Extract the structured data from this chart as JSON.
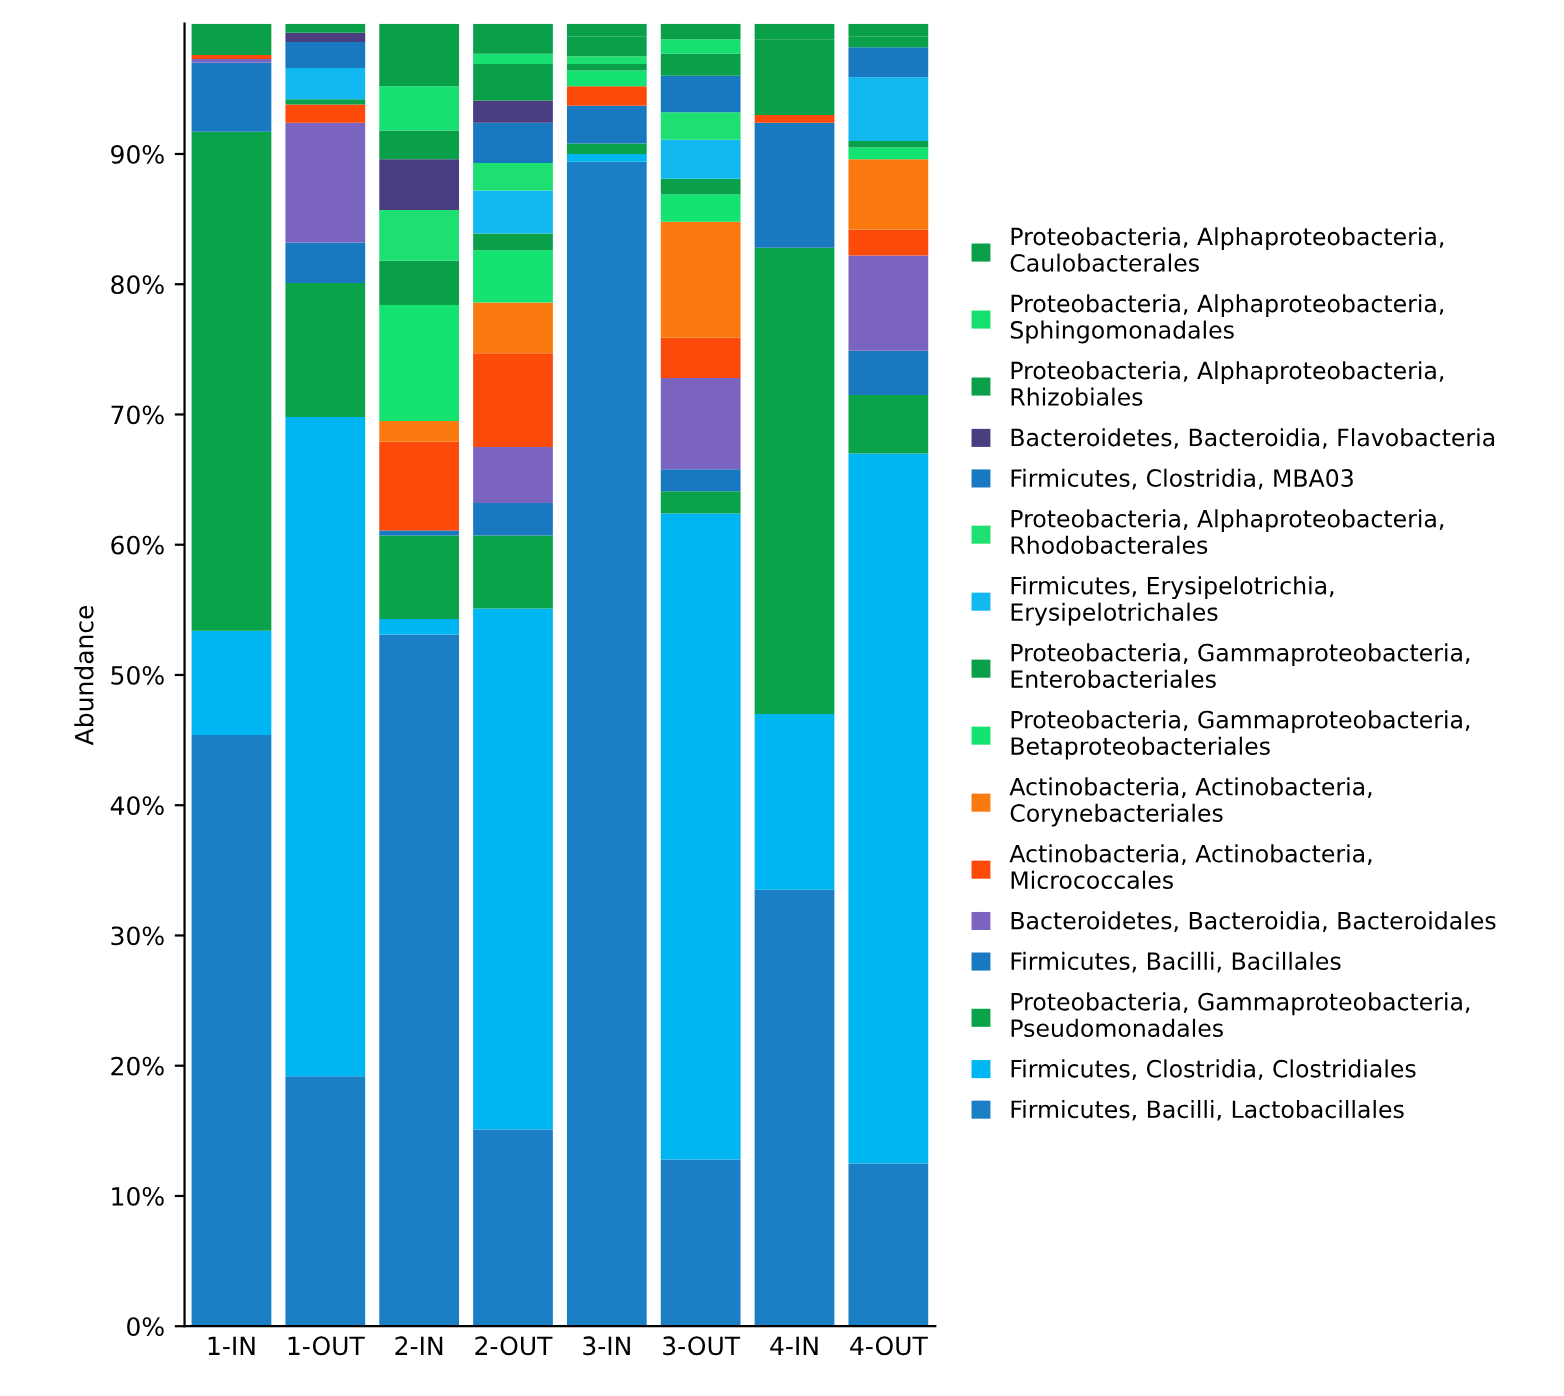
{
  "chart_data": {
    "type": "bar",
    "stacked": true,
    "ylabel": "Abundance",
    "categories": [
      "1-IN",
      "1-OUT",
      "2-IN",
      "2-OUT",
      "3-IN",
      "3-OUT",
      "4-IN",
      "4-OUT"
    ],
    "ylim": [
      0,
      100
    ],
    "yticks": [
      {
        "value": 0,
        "label": "0%"
      },
      {
        "value": 10,
        "label": "10%"
      },
      {
        "value": 20,
        "label": "20%"
      },
      {
        "value": 30,
        "label": "30%"
      },
      {
        "value": 40,
        "label": "40%"
      },
      {
        "value": 50,
        "label": "50%"
      },
      {
        "value": 60,
        "label": "60%"
      },
      {
        "value": 70,
        "label": "70%"
      },
      {
        "value": 80,
        "label": "80%"
      },
      {
        "value": 90,
        "label": "90%"
      }
    ],
    "grid": false,
    "legend": "right",
    "series": [
      {
        "name": "Firmicutes, Bacilli, Lactobacillales",
        "color": "#1a7fc4",
        "values": [
          45.4,
          19.2,
          53.1,
          15.1,
          89.4,
          12.8,
          33.5,
          12.5
        ]
      },
      {
        "name": "Firmicutes, Clostridia, Clostridiales",
        "color": "#00b6f2",
        "values": [
          8.0,
          50.6,
          1.2,
          40.0,
          0.6,
          49.6,
          13.5,
          54.5
        ]
      },
      {
        "name": "Proteobacteria, Gammaproteobacteria, Pseudomonadales",
        "color": "#0aa34a",
        "values": [
          38.3,
          10.3,
          6.4,
          5.6,
          0.8,
          1.7,
          35.8,
          4.5
        ]
      },
      {
        "name": "Firmicutes, Bacilli, Bacillales",
        "color": "#1878c0",
        "values": [
          5.3,
          3.1,
          0.4,
          2.5,
          2.9,
          1.7,
          9.6,
          3.4
        ]
      },
      {
        "name": "Bacteroidetes, Bacteroidia, Bacteroidales",
        "color": "#7b64c0",
        "values": [
          0.3,
          9.2,
          0,
          4.3,
          0,
          7.0,
          0,
          7.3
        ]
      },
      {
        "name": "Actinobacteria, Actinobacteria, Micrococcales",
        "color": "#fb4a0a",
        "values": [
          0.3,
          1.4,
          6.8,
          7.2,
          1.5,
          3.1,
          0.6,
          2.0
        ]
      },
      {
        "name": "Actinobacteria, Actinobacteria, Corynebacteriales",
        "color": "#fb7a10",
        "values": [
          0,
          0,
          1.6,
          3.9,
          0,
          8.9,
          0,
          5.4
        ]
      },
      {
        "name": "Proteobacteria, Gammaproteobacteria, Betaproteobacteriales",
        "color": "#14e372",
        "values": [
          0,
          0,
          8.9,
          4.0,
          1.2,
          2.1,
          0,
          0.9
        ]
      },
      {
        "name": "Proteobacteria, Gammaproteobacteria, Enterobacteriales",
        "color": "#0aa04a",
        "values": [
          0,
          0.4,
          3.4,
          1.3,
          0.5,
          1.2,
          5.8,
          0.5
        ]
      },
      {
        "name": "Firmicutes, Erysipelotrichia, Erysipelotrichales",
        "color": "#12b8f0",
        "values": [
          0,
          2.4,
          0,
          3.3,
          0,
          3.0,
          0,
          4.9
        ]
      },
      {
        "name": "Proteobacteria, Alphaproteobacteria, Rhodobacterales",
        "color": "#1ee070",
        "values": [
          0,
          0,
          3.9,
          2.1,
          0.6,
          2.1,
          0,
          0
        ]
      },
      {
        "name": "Firmicutes, Clostridia, MBA03",
        "color": "#1878c0",
        "values": [
          0,
          2.0,
          0,
          3.1,
          0,
          2.8,
          0,
          2.3
        ]
      },
      {
        "name": "Bacteroidetes, Bacteroidia, Flavobacteria",
        "color": "#4a3d80",
        "values": [
          0,
          0.7,
          3.9,
          1.7,
          0,
          0,
          0,
          0
        ]
      },
      {
        "name": "Proteobacteria, Alphaproteobacteria, Rhizobiales",
        "color": "#0aa04a",
        "values": [
          0,
          0,
          2.2,
          2.8,
          1.5,
          1.7,
          0,
          0.8
        ]
      },
      {
        "name": "Proteobacteria, Alphaproteobacteria, Sphingomonadales",
        "color": "#18e070",
        "values": [
          0,
          0,
          3.4,
          0.8,
          0,
          1.1,
          0,
          0
        ]
      },
      {
        "name": "Proteobacteria, Alphaproteobacteria, Caulobacterales",
        "color": "#0aa04a",
        "values": [
          2.4,
          0.7,
          4.8,
          2.3,
          1.0,
          1.2,
          1.2,
          1.0
        ]
      }
    ]
  }
}
